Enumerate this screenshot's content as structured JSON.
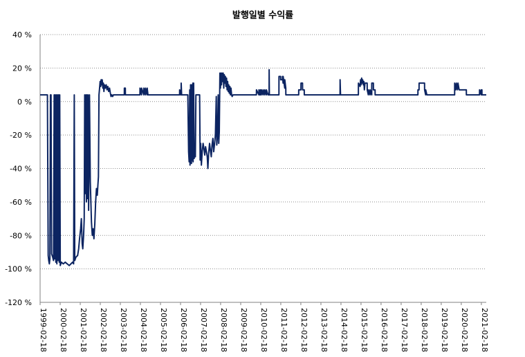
{
  "chart_data": {
    "type": "line",
    "title": "발행일별 수익률",
    "xlabel": "",
    "ylabel": "",
    "ylim": [
      -120,
      40
    ],
    "yticks": [
      40,
      20,
      0,
      -20,
      -40,
      -60,
      -80,
      -100,
      -120
    ],
    "ytick_labels": [
      "40 %",
      "20 %",
      "0 %",
      "-20 %",
      "-40 %",
      "-60 %",
      "-80 %",
      "-100 %",
      "-120 %"
    ],
    "x_start": "1999-02-18",
    "x_end": "2021-05-18",
    "xtick_labels": [
      "1999-02-18",
      "2000-02-18",
      "2001-02-18",
      "2002-02-18",
      "2003-02-18",
      "2004-02-18",
      "2005-02-18",
      "2006-02-18",
      "2007-02-18",
      "2008-02-18",
      "2009-02-18",
      "2010-02-18",
      "2011-02-18",
      "2012-02-18",
      "2013-02-18",
      "2014-02-18",
      "2015-02-18",
      "2016-02-18",
      "2017-02-18",
      "2018-02-18",
      "2019-02-18",
      "2020-02-18",
      "2021-02-18"
    ],
    "grid": true,
    "legend": "none",
    "line_color": "#0c2461",
    "series": [
      {
        "values": [
          [
            "1999-02-18",
            4
          ],
          [
            "1999-07-01",
            4
          ],
          [
            "1999-07-15",
            -92
          ],
          [
            "1999-07-25",
            -95
          ],
          [
            "1999-08-05",
            -97
          ],
          [
            "1999-08-15",
            -94
          ],
          [
            "1999-08-25",
            4
          ],
          [
            "1999-09-05",
            4
          ],
          [
            "1999-09-15",
            -91
          ],
          [
            "1999-10-05",
            -93
          ],
          [
            "1999-10-20",
            -95
          ],
          [
            "1999-11-01",
            4
          ],
          [
            "1999-11-10",
            -94
          ],
          [
            "1999-11-20",
            4
          ],
          [
            "1999-12-01",
            -96
          ],
          [
            "1999-12-10",
            4
          ],
          [
            "1999-12-20",
            -97
          ],
          [
            "2000-01-01",
            4
          ],
          [
            "2000-01-10",
            -95
          ],
          [
            "2000-01-20",
            4
          ],
          [
            "2000-02-01",
            -96
          ],
          [
            "2000-02-10",
            4
          ],
          [
            "2000-02-20",
            -98
          ],
          [
            "2000-03-10",
            -96
          ],
          [
            "2000-04-15",
            -97
          ],
          [
            "2000-05-20",
            -96
          ],
          [
            "2000-06-25",
            -97
          ],
          [
            "2000-08-01",
            -98
          ],
          [
            "2000-09-01",
            -97
          ],
          [
            "2000-10-01",
            -96
          ],
          [
            "2000-10-20",
            -97
          ],
          [
            "2000-11-01",
            4
          ],
          [
            "2000-11-10",
            -95
          ],
          [
            "2000-12-01",
            -93
          ],
          [
            "2001-01-01",
            -92
          ],
          [
            "2001-01-20",
            -88
          ],
          [
            "2001-02-05",
            -82
          ],
          [
            "2001-02-25",
            -76
          ],
          [
            "2001-03-10",
            -70
          ],
          [
            "2001-03-25",
            -85
          ],
          [
            "2001-04-05",
            -88
          ],
          [
            "2001-04-20",
            -80
          ],
          [
            "2001-05-01",
            -70
          ],
          [
            "2001-05-10",
            4
          ],
          [
            "2001-05-20",
            -55
          ],
          [
            "2001-06-01",
            4
          ],
          [
            "2001-06-10",
            -60
          ],
          [
            "2001-06-20",
            4
          ],
          [
            "2001-07-01",
            -58
          ],
          [
            "2001-07-10",
            4
          ],
          [
            "2001-07-20",
            -65
          ],
          [
            "2001-08-05",
            4
          ],
          [
            "2001-08-20",
            -48
          ],
          [
            "2001-09-10",
            -72
          ],
          [
            "2001-09-25",
            -80
          ],
          [
            "2001-10-10",
            -76
          ],
          [
            "2001-10-25",
            -82
          ],
          [
            "2001-11-10",
            -73
          ],
          [
            "2001-11-25",
            -60
          ],
          [
            "2001-12-10",
            -52
          ],
          [
            "2001-12-25",
            -56
          ],
          [
            "2002-01-05",
            -50
          ],
          [
            "2002-01-15",
            -45
          ],
          [
            "2002-01-25",
            4
          ],
          [
            "2002-02-05",
            8
          ],
          [
            "2002-02-15",
            12
          ],
          [
            "2002-02-25",
            9
          ],
          [
            "2002-03-05",
            13
          ],
          [
            "2002-03-15",
            10
          ],
          [
            "2002-03-25",
            13
          ],
          [
            "2002-04-05",
            8
          ],
          [
            "2002-04-15",
            11
          ],
          [
            "2002-04-25",
            6
          ],
          [
            "2002-05-05",
            10
          ],
          [
            "2002-05-20",
            8
          ],
          [
            "2002-06-05",
            10
          ],
          [
            "2002-06-20",
            7
          ],
          [
            "2002-07-05",
            9
          ],
          [
            "2002-07-20",
            6
          ],
          [
            "2002-08-05",
            8
          ],
          [
            "2002-08-20",
            5
          ],
          [
            "2002-09-01",
            3
          ],
          [
            "2002-09-15",
            4
          ],
          [
            "2002-10-01",
            3
          ],
          [
            "2002-10-15",
            4
          ],
          [
            "2003-01-01",
            4
          ],
          [
            "2003-05-01",
            4
          ],
          [
            "2003-05-02",
            8
          ],
          [
            "2003-05-20",
            8
          ],
          [
            "2003-05-21",
            4
          ],
          [
            "2004-02-10",
            4
          ],
          [
            "2004-02-11",
            8
          ],
          [
            "2004-03-10",
            4
          ],
          [
            "2004-03-11",
            8
          ],
          [
            "2004-04-20",
            4
          ],
          [
            "2004-04-21",
            8
          ],
          [
            "2004-05-20",
            4
          ],
          [
            "2004-05-21",
            8
          ],
          [
            "2004-06-20",
            4
          ],
          [
            "2004-06-21",
            8
          ],
          [
            "2004-07-05",
            4
          ],
          [
            "2006-02-01",
            4
          ],
          [
            "2006-02-02",
            7
          ],
          [
            "2006-02-20",
            4
          ],
          [
            "2006-03-01",
            4
          ],
          [
            "2006-03-02",
            11
          ],
          [
            "2006-03-10",
            4
          ],
          [
            "2006-07-01",
            4
          ],
          [
            "2006-07-15",
            -30
          ],
          [
            "2006-07-25",
            -36
          ],
          [
            "2006-08-05",
            7
          ],
          [
            "2006-08-10",
            -38
          ],
          [
            "2006-08-20",
            10
          ],
          [
            "2006-08-25",
            -34
          ],
          [
            "2006-09-05",
            -37
          ],
          [
            "2006-09-10",
            10
          ],
          [
            "2006-09-20",
            -35
          ],
          [
            "2006-10-01",
            11
          ],
          [
            "2006-10-05",
            -36
          ],
          [
            "2006-10-15",
            11
          ],
          [
            "2006-10-25",
            -34
          ],
          [
            "2006-11-05",
            -30
          ],
          [
            "2006-11-15",
            -33
          ],
          [
            "2006-11-25",
            4
          ],
          [
            "2006-12-10",
            4
          ],
          [
            "2007-01-01",
            4
          ],
          [
            "2007-02-01",
            4
          ],
          [
            "2007-02-10",
            -35
          ],
          [
            "2007-02-20",
            -25
          ],
          [
            "2007-03-05",
            -38
          ],
          [
            "2007-03-20",
            -30
          ],
          [
            "2007-04-05",
            -25
          ],
          [
            "2007-04-20",
            -28
          ],
          [
            "2007-05-05",
            -32
          ],
          [
            "2007-05-20",
            -27
          ],
          [
            "2007-06-05",
            -30
          ],
          [
            "2007-06-20",
            -33
          ],
          [
            "2007-07-01",
            -40
          ],
          [
            "2007-07-15",
            -31
          ],
          [
            "2007-08-01",
            -25
          ],
          [
            "2007-08-15",
            -29
          ],
          [
            "2007-09-01",
            -33
          ],
          [
            "2007-09-15",
            -26
          ],
          [
            "2007-10-01",
            -22
          ],
          [
            "2007-10-15",
            -30
          ],
          [
            "2007-11-01",
            -25
          ],
          [
            "2007-11-15",
            -20
          ],
          [
            "2007-12-01",
            3
          ],
          [
            "2007-12-10",
            -26
          ],
          [
            "2007-12-25",
            -20
          ],
          [
            "2008-01-05",
            4
          ],
          [
            "2008-01-15",
            -25
          ],
          [
            "2008-01-25",
            -18
          ],
          [
            "2008-02-05",
            17
          ],
          [
            "2008-02-15",
            8
          ],
          [
            "2008-02-25",
            17
          ],
          [
            "2008-03-05",
            10
          ],
          [
            "2008-03-15",
            17
          ],
          [
            "2008-03-25",
            12
          ],
          [
            "2008-04-05",
            17
          ],
          [
            "2008-04-15",
            8
          ],
          [
            "2008-04-25",
            16
          ],
          [
            "2008-05-05",
            11
          ],
          [
            "2008-05-15",
            15
          ],
          [
            "2008-05-25",
            9
          ],
          [
            "2008-06-05",
            14
          ],
          [
            "2008-06-15",
            7
          ],
          [
            "2008-06-25",
            12
          ],
          [
            "2008-07-05",
            6
          ],
          [
            "2008-07-15",
            10
          ],
          [
            "2008-07-25",
            5
          ],
          [
            "2008-08-05",
            9
          ],
          [
            "2008-08-15",
            4
          ],
          [
            "2008-08-25",
            8
          ],
          [
            "2008-09-05",
            4
          ],
          [
            "2008-09-15",
            3
          ],
          [
            "2008-10-01",
            4
          ],
          [
            "2009-12-01",
            4
          ],
          [
            "2009-12-02",
            7
          ],
          [
            "2010-01-15",
            4
          ],
          [
            "2010-01-16",
            7
          ],
          [
            "2010-02-01",
            4
          ],
          [
            "2010-02-10",
            4
          ],
          [
            "2010-02-11",
            7
          ],
          [
            "2010-03-01",
            4
          ],
          [
            "2010-03-02",
            7
          ],
          [
            "2010-04-01",
            4
          ],
          [
            "2010-04-02",
            7
          ],
          [
            "2010-05-01",
            4
          ],
          [
            "2010-05-02",
            7
          ],
          [
            "2010-06-01",
            4
          ],
          [
            "2010-06-02",
            7
          ],
          [
            "2010-07-01",
            4
          ],
          [
            "2010-07-20",
            4
          ],
          [
            "2010-07-21",
            19
          ],
          [
            "2010-07-25",
            4
          ],
          [
            "2011-01-15",
            4
          ],
          [
            "2011-01-16",
            15
          ],
          [
            "2011-02-15",
            15
          ],
          [
            "2011-02-16",
            13
          ],
          [
            "2011-03-20",
            13
          ],
          [
            "2011-03-21",
            15
          ],
          [
            "2011-04-01",
            11
          ],
          [
            "2011-04-02",
            15
          ],
          [
            "2011-05-01",
            8
          ],
          [
            "2011-05-02",
            13
          ],
          [
            "2011-05-20",
            8
          ],
          [
            "2011-05-21",
            4
          ],
          [
            "2012-01-10",
            4
          ],
          [
            "2012-01-11",
            7
          ],
          [
            "2012-02-20",
            7
          ],
          [
            "2012-02-21",
            11
          ],
          [
            "2012-03-20",
            11
          ],
          [
            "2012-03-21",
            7
          ],
          [
            "2012-04-20",
            7
          ],
          [
            "2012-04-21",
            4
          ],
          [
            "2014-02-01",
            4
          ],
          [
            "2014-02-02",
            13
          ],
          [
            "2014-02-10",
            4
          ],
          [
            "2015-01-01",
            4
          ],
          [
            "2015-01-02",
            11
          ],
          [
            "2015-02-01",
            9
          ],
          [
            "2015-02-10",
            13
          ],
          [
            "2015-02-20",
            10
          ],
          [
            "2015-03-01",
            14
          ],
          [
            "2015-03-10",
            11
          ],
          [
            "2015-03-20",
            13
          ],
          [
            "2015-04-01",
            10
          ],
          [
            "2015-04-10",
            12
          ],
          [
            "2015-04-20",
            7
          ],
          [
            "2015-05-01",
            11
          ],
          [
            "2015-06-10",
            11
          ],
          [
            "2015-06-11",
            7
          ],
          [
            "2015-07-01",
            4
          ],
          [
            "2015-07-02",
            7
          ],
          [
            "2015-08-01",
            4
          ],
          [
            "2015-08-02",
            7
          ],
          [
            "2015-09-01",
            4
          ],
          [
            "2015-09-02",
            11
          ],
          [
            "2015-10-01",
            11
          ],
          [
            "2015-10-02",
            7
          ],
          [
            "2015-11-01",
            7
          ],
          [
            "2015-11-02",
            4
          ],
          [
            "2017-12-20",
            4
          ],
          [
            "2017-12-21",
            7
          ],
          [
            "2018-01-10",
            7
          ],
          [
            "2018-01-11",
            11
          ],
          [
            "2018-04-20",
            11
          ],
          [
            "2018-04-21",
            7
          ],
          [
            "2018-05-10",
            4
          ],
          [
            "2018-05-11",
            7
          ],
          [
            "2018-06-01",
            4
          ],
          [
            "2019-10-20",
            4
          ],
          [
            "2019-10-21",
            11
          ],
          [
            "2019-11-10",
            7
          ],
          [
            "2019-11-20",
            11
          ],
          [
            "2019-12-10",
            7
          ],
          [
            "2019-12-20",
            11
          ],
          [
            "2020-01-10",
            7
          ],
          [
            "2020-05-20",
            7
          ],
          [
            "2020-05-21",
            4
          ],
          [
            "2021-01-15",
            4
          ],
          [
            "2021-01-16",
            7
          ],
          [
            "2021-02-15",
            4
          ],
          [
            "2021-02-16",
            7
          ],
          [
            "2021-02-28",
            7
          ],
          [
            "2021-03-01",
            4
          ],
          [
            "2021-05-18",
            4
          ]
        ]
      }
    ]
  }
}
